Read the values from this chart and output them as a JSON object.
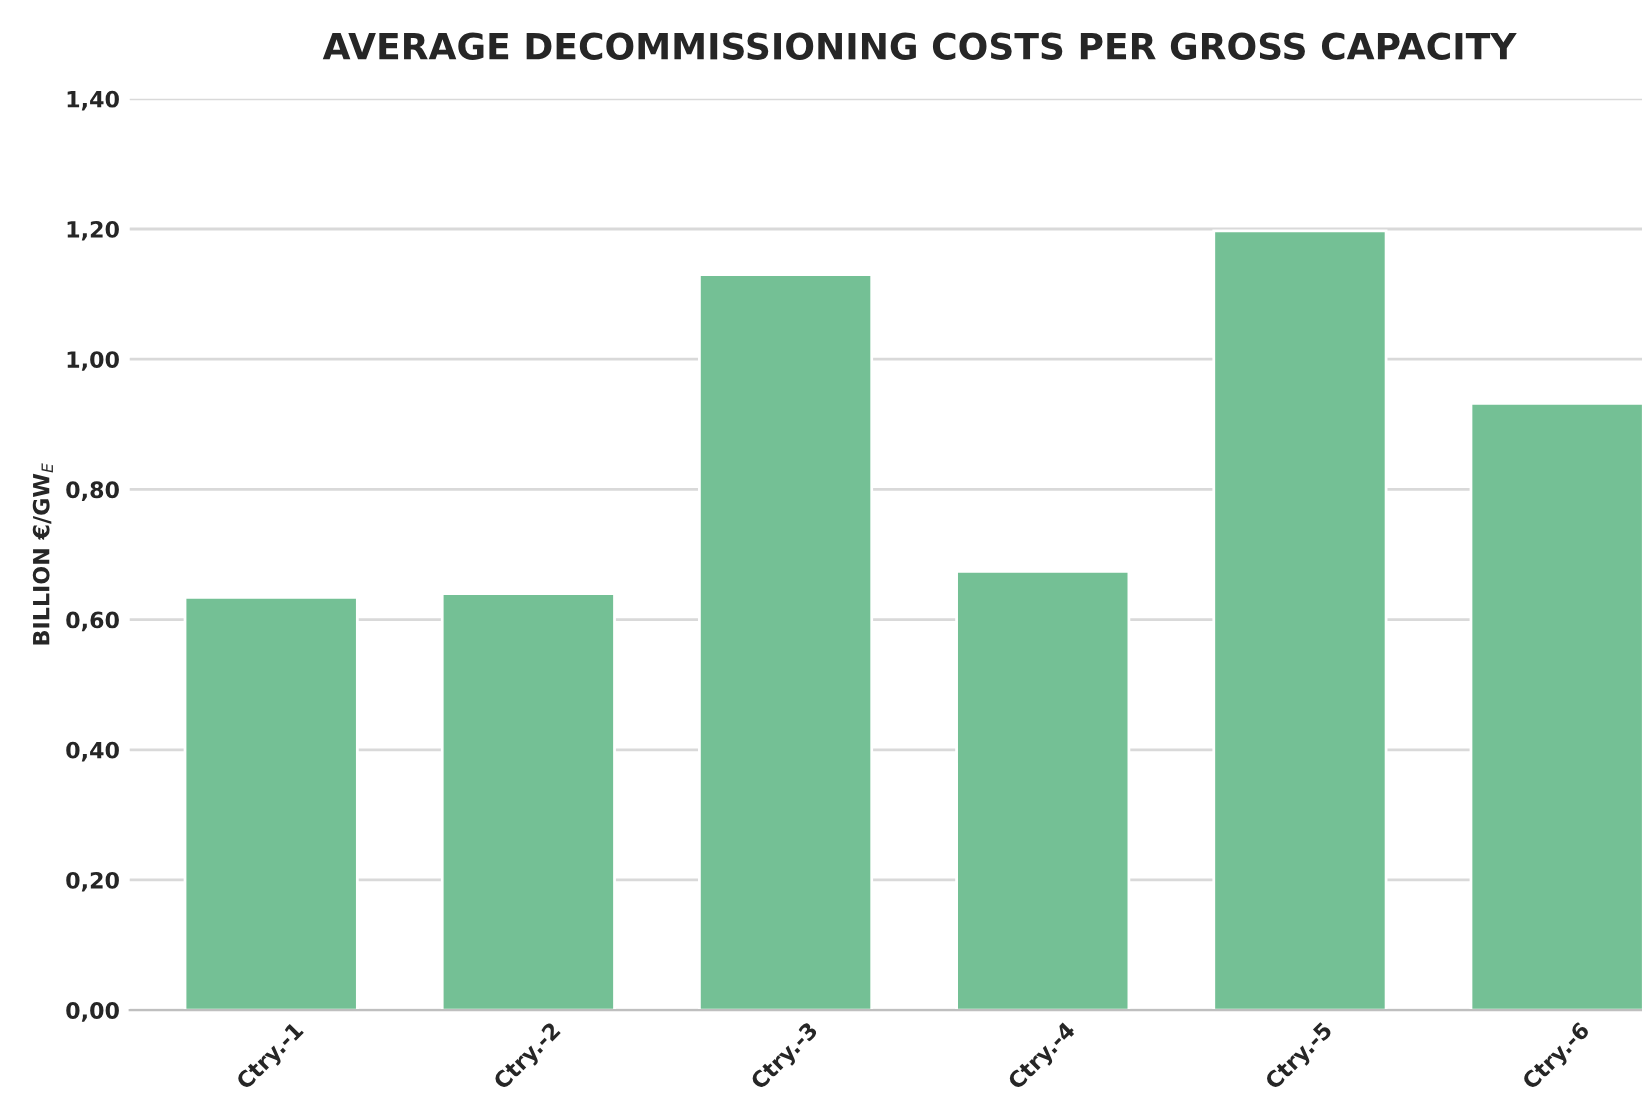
{
  "chart_data": {
    "type": "bar",
    "title": "AVERAGE DECOMMISSIONING COSTS PER GROSS CAPACITY",
    "ylabel": "BILLION €/GW$_{E}$",
    "categories": [
      "Ctry.-1",
      "Ctry.-2",
      "Ctry.-3",
      "Ctry.-4",
      "Ctry.-5",
      "Ctry.-6"
    ],
    "values": [
      0.634,
      0.64,
      1.13,
      0.674,
      1.197,
      0.932
    ],
    "color": "#74c095",
    "ylim": [
      0,
      1.4
    ],
    "yticks": [
      {
        "value": 0,
        "label": "0,00"
      },
      {
        "value": 0.2,
        "label": "0,20"
      },
      {
        "value": 0.4,
        "label": "0,40"
      },
      {
        "value": 0.6,
        "label": "0,60"
      },
      {
        "value": 0.8,
        "label": "0,80"
      },
      {
        "value": 1.0,
        "label": "1,00"
      },
      {
        "value": 1.2,
        "label": "1,20"
      },
      {
        "value": 1.4,
        "label": "1,40"
      }
    ],
    "grid": "y"
  }
}
